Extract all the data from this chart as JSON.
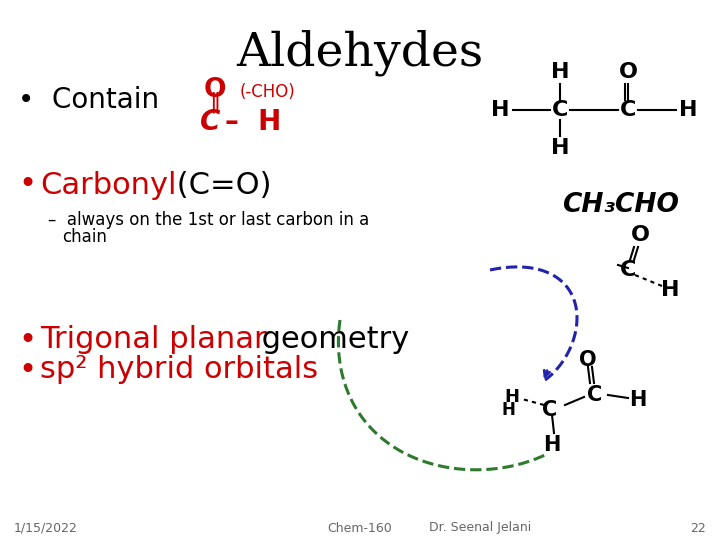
{
  "title": "Aldehydes",
  "title_fontsize": 34,
  "background_color": "#ffffff",
  "chemo_red": "#cc0000",
  "chemo_black": "#000000",
  "footer_date": "1/15/2022",
  "footer_course": "Chem-160",
  "footer_author": "Dr. Seenal Jelani",
  "footer_page": "22",
  "footer_fontsize": 9
}
